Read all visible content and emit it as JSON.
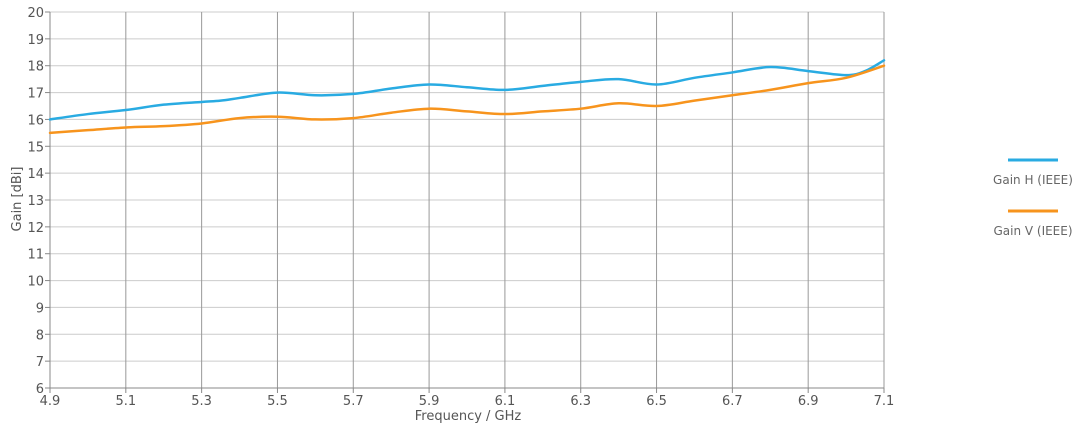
{
  "chart_data": {
    "type": "line",
    "xlabel": "Frequency / GHz",
    "ylabel": "Gain [dBi]",
    "xlim": [
      4.9,
      7.1
    ],
    "ylim": [
      6,
      20
    ],
    "x_ticks": [
      "4.9",
      "5.1",
      "5.3",
      "5.5",
      "5.7",
      "5.9",
      "6.1",
      "6.3",
      "6.5",
      "6.7",
      "6.9",
      "7.1"
    ],
    "y_ticks": [
      "6",
      "7",
      "8",
      "9",
      "10",
      "11",
      "12",
      "13",
      "14",
      "15",
      "16",
      "17",
      "18",
      "19",
      "20"
    ],
    "grid": true,
    "legend_position": "right",
    "series": [
      {
        "name": "Gain H (IEEE)",
        "color": "#29abe2",
        "x": [
          4.9,
          5.0,
          5.1,
          5.2,
          5.3,
          5.35,
          5.4,
          5.5,
          5.6,
          5.7,
          5.8,
          5.9,
          6.0,
          6.1,
          6.2,
          6.3,
          6.4,
          6.5,
          6.6,
          6.7,
          6.8,
          6.9,
          7.0,
          7.05,
          7.1
        ],
        "values": [
          16.0,
          16.2,
          16.35,
          16.55,
          16.65,
          16.7,
          16.8,
          17.0,
          16.9,
          16.95,
          17.15,
          17.3,
          17.2,
          17.1,
          17.25,
          17.4,
          17.5,
          17.3,
          17.55,
          17.75,
          17.95,
          17.8,
          17.65,
          17.8,
          18.2
        ]
      },
      {
        "name": "Gain V (IEEE)",
        "color": "#f7941d",
        "x": [
          4.9,
          5.0,
          5.1,
          5.2,
          5.3,
          5.4,
          5.5,
          5.6,
          5.7,
          5.8,
          5.9,
          6.0,
          6.1,
          6.2,
          6.3,
          6.4,
          6.5,
          6.6,
          6.7,
          6.8,
          6.9,
          7.0,
          7.1
        ],
        "values": [
          15.5,
          15.6,
          15.7,
          15.75,
          15.85,
          16.05,
          16.1,
          16.0,
          16.05,
          16.25,
          16.4,
          16.3,
          16.2,
          16.3,
          16.4,
          16.6,
          16.5,
          16.7,
          16.9,
          17.1,
          17.35,
          17.55,
          18.0
        ]
      }
    ]
  }
}
